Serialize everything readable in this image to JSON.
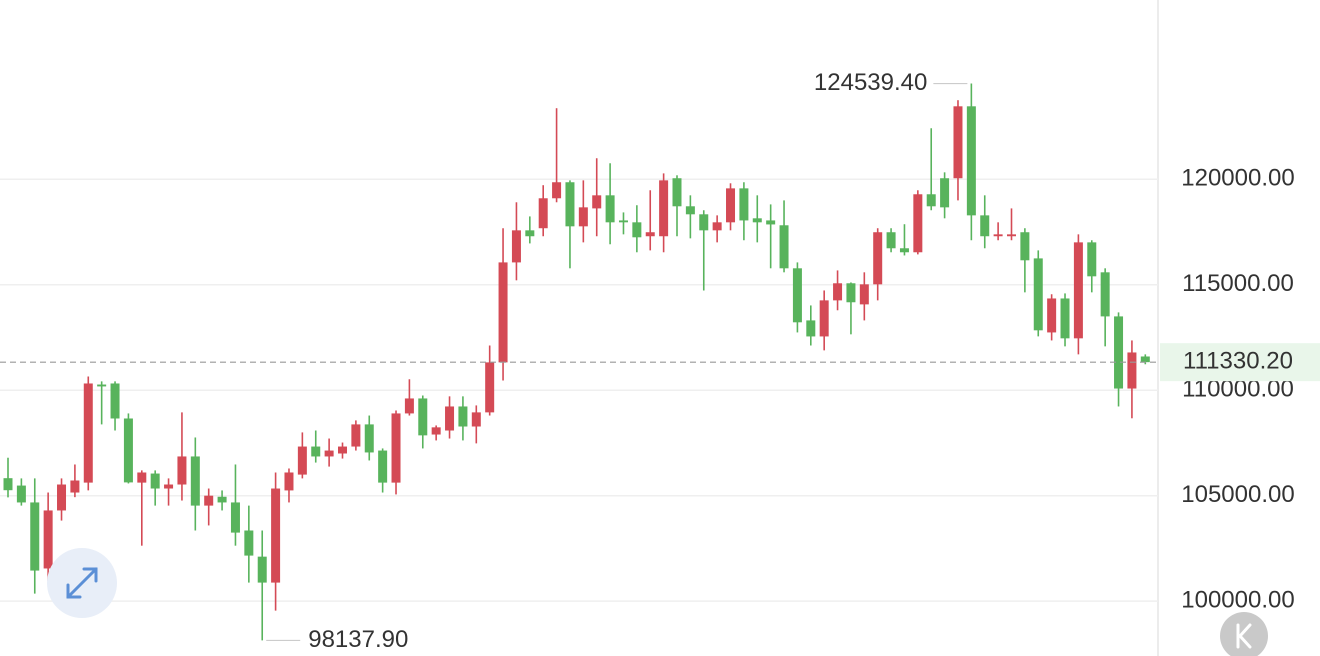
{
  "chart_data": {
    "type": "candlestick",
    "open": [
      105830,
      105480,
      104680,
      101550,
      104300,
      105150,
      105620,
      110270,
      110320,
      108660,
      105620,
      106050,
      105340,
      105530,
      106860,
      104530,
      104950,
      104680,
      103350,
      102110,
      100880,
      105250,
      106000,
      107330,
      106860,
      107000,
      107330,
      108380,
      107140,
      105620,
      108900,
      109610,
      107900,
      108090,
      109230,
      108280,
      108950,
      111320,
      116060,
      117580,
      117680,
      119100,
      119860,
      117770,
      118620,
      119240,
      118050,
      117960,
      117300,
      117300,
      120050,
      118720,
      118340,
      117580,
      117960,
      119570,
      118150,
      118050,
      117820,
      115780,
      113310,
      112550,
      114260,
      115070,
      114070,
      115020,
      117490,
      116730,
      116540,
      119290,
      120050,
      120050,
      123460,
      118290,
      117300,
      117300,
      117490,
      116250,
      112740,
      114350,
      112460,
      117010,
      115590,
      113500,
      110080,
      111600
    ],
    "high": [
      106800,
      105820,
      105820,
      105150,
      105820,
      106480,
      110650,
      110420,
      110420,
      108900,
      106200,
      106200,
      105820,
      108950,
      107760,
      105340,
      105250,
      106480,
      104530,
      103350,
      106100,
      106290,
      108000,
      108090,
      107710,
      107520,
      108570,
      108800,
      107240,
      109040,
      110520,
      109750,
      108330,
      109710,
      109710,
      109280,
      112120,
      117680,
      118910,
      118240,
      119720,
      123370,
      119950,
      119950,
      121000,
      120760,
      118430,
      118770,
      119480,
      120280,
      120190,
      119240,
      118530,
      118290,
      119810,
      119860,
      119240,
      118810,
      119000,
      116060,
      114020,
      114730,
      115680,
      115110,
      115590,
      117680,
      117680,
      117870,
      119480,
      122420,
      120330,
      123750,
      124539.4,
      119240,
      117960,
      118620,
      117680,
      116630,
      114550,
      114590,
      117390,
      117110,
      115780,
      113690,
      112360,
      111700
    ],
    "low": [
      104920,
      104530,
      100360,
      100970,
      103820,
      104930,
      105250,
      108380,
      108090,
      105580,
      102630,
      104530,
      104530,
      104770,
      103350,
      103590,
      104300,
      102630,
      100880,
      98137.9,
      99550,
      104680,
      105820,
      106570,
      106380,
      106760,
      107140,
      106670,
      105150,
      105060,
      108800,
      107240,
      107620,
      107710,
      107620,
      107480,
      108800,
      110460,
      115210,
      116960,
      117300,
      118910,
      115780,
      117010,
      117300,
      116920,
      117390,
      116540,
      116630,
      116540,
      117300,
      117200,
      114730,
      117010,
      117580,
      117110,
      117010,
      115780,
      115590,
      112740,
      112120,
      111890,
      113790,
      112650,
      113310,
      114260,
      116540,
      116390,
      116440,
      118530,
      118150,
      119000,
      117110,
      116730,
      117110,
      117110,
      114640,
      112550,
      112360,
      112080,
      111700,
      114640,
      112080,
      109230,
      108670,
      111230
    ],
    "close": [
      105260,
      104680,
      101450,
      104300,
      105530,
      105720,
      110320,
      110180,
      108660,
      105630,
      106100,
      105340,
      105530,
      106860,
      104530,
      105000,
      104680,
      103250,
      102160,
      100880,
      105340,
      106100,
      107330,
      106860,
      107140,
      107330,
      108380,
      107050,
      105620,
      108900,
      109610,
      107860,
      108240,
      109230,
      108280,
      108950,
      111320,
      116060,
      117580,
      117300,
      119100,
      119860,
      117770,
      118670,
      119240,
      117960,
      117960,
      117250,
      117490,
      119950,
      118720,
      118340,
      117580,
      117960,
      119570,
      118050,
      117960,
      117860,
      115780,
      113220,
      112550,
      114260,
      115070,
      114170,
      115020,
      117490,
      116730,
      116540,
      119290,
      118720,
      118670,
      123460,
      118290,
      117300,
      117390,
      117390,
      116160,
      112840,
      114350,
      112460,
      117010,
      115400,
      113500,
      110080,
      111790,
      111330.2
    ],
    "up_color": "#d44a55",
    "down_color": "#58b35c",
    "ylim": [
      97400,
      128500
    ],
    "yticks": [
      {
        "value": 100000,
        "label": "100000.00"
      },
      {
        "value": 105000,
        "label": "105000.00"
      },
      {
        "value": 110000,
        "label": "110000.00"
      },
      {
        "value": 115000,
        "label": "115000.00"
      },
      {
        "value": 120000,
        "label": "120000.00"
      }
    ],
    "grid": true,
    "max_label": {
      "value": 124539.4,
      "label": "124539.40"
    },
    "min_label": {
      "value": 98137.9,
      "label": "98137.90"
    },
    "last_price": {
      "value": 111330.2,
      "label": "111330.20"
    }
  }
}
